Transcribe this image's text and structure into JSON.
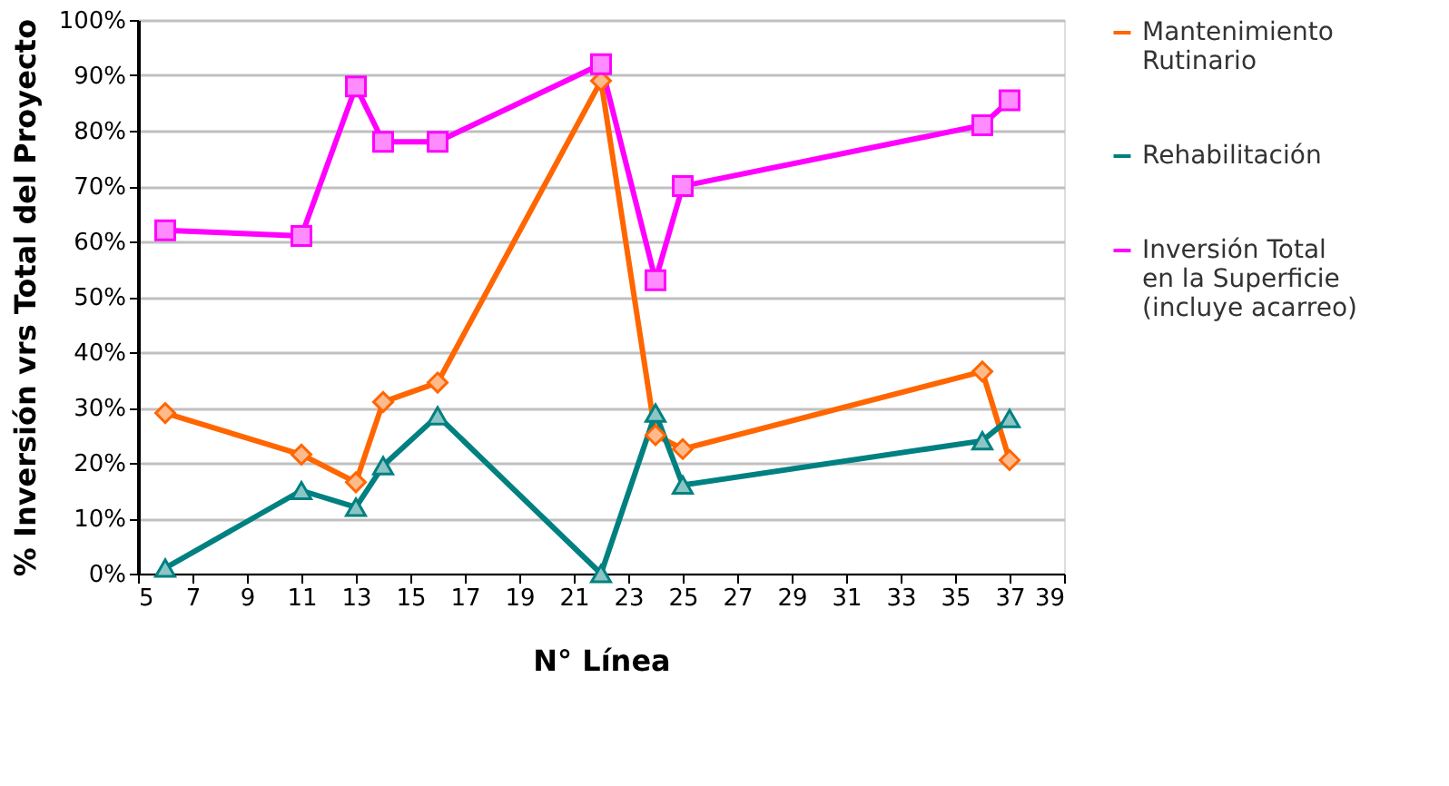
{
  "chart_data": {
    "type": "line",
    "xlabel": "N° Línea",
    "ylabel": "% Inversión vrs Total del Proyecto",
    "x": [
      6,
      11,
      13,
      14,
      16,
      22,
      24,
      25,
      36,
      37
    ],
    "series": [
      {
        "name": "Mantenimiento\nRutinario",
        "color": "#ff6600",
        "marker": "diamond",
        "values": [
          29,
          21.5,
          16.5,
          31,
          34.5,
          89,
          25,
          22.5,
          36.5,
          20.5
        ]
      },
      {
        "name": "Rehabilitación",
        "color": "#008080",
        "marker": "triangle",
        "values": [
          1,
          15,
          12,
          19.5,
          28.5,
          0,
          29,
          16,
          24,
          28
        ]
      },
      {
        "name": "Inversión Total\nen la Superficie\n(incluye acarreo)",
        "color": "#ff00ff",
        "marker": "square",
        "values": [
          62,
          61,
          88,
          78,
          78,
          92,
          53,
          70,
          81,
          85.5
        ]
      }
    ],
    "xlim": [
      5,
      39
    ],
    "xticks": [
      5,
      7,
      9,
      11,
      13,
      15,
      17,
      19,
      21,
      23,
      25,
      27,
      29,
      31,
      33,
      35,
      37,
      39
    ],
    "ylim": [
      0,
      100
    ],
    "yticks": [
      {
        "value": 0,
        "label": "0%"
      },
      {
        "value": 10,
        "label": "10%"
      },
      {
        "value": 20,
        "label": "20%"
      },
      {
        "value": 30,
        "label": "30%"
      },
      {
        "value": 40,
        "label": "40%"
      },
      {
        "value": 50,
        "label": "50%"
      },
      {
        "value": 60,
        "label": "60%"
      },
      {
        "value": 70,
        "label": "70%"
      },
      {
        "value": 80,
        "label": "80%"
      },
      {
        "value": 90,
        "label": "90%"
      },
      {
        "value": 100,
        "label": "100%"
      }
    ],
    "grid": "y",
    "legend": "right",
    "line_style": "solid"
  }
}
